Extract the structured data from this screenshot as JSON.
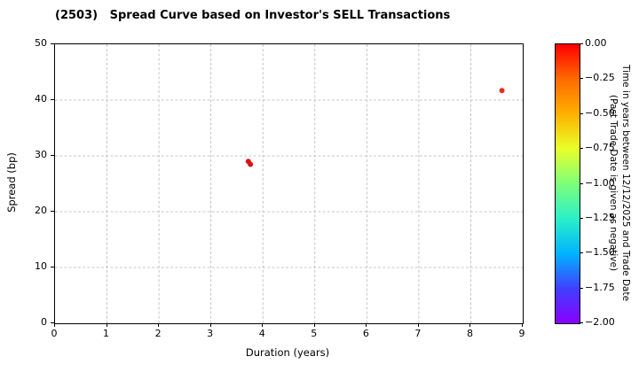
{
  "chart_data": {
    "type": "scatter",
    "title": "(2503)   Spread Curve based on Investor's SELL Transactions",
    "xlabel": "Duration (years)",
    "ylabel": "Spread (bp)",
    "xlim": [
      0,
      9
    ],
    "ylim": [
      0,
      50
    ],
    "xticks": [
      0,
      1,
      2,
      3,
      4,
      5,
      6,
      7,
      8,
      9
    ],
    "yticks": [
      0,
      10,
      20,
      30,
      40,
      50
    ],
    "grid": true,
    "points": [
      {
        "x": 3.72,
        "y": 29.0,
        "color": "#e01313"
      },
      {
        "x": 3.76,
        "y": 28.5,
        "color": "#e01313"
      },
      {
        "x": 8.6,
        "y": 41.7,
        "color": "#ee2a1a"
      }
    ],
    "colorbar": {
      "ticks": [
        "0.00",
        "−0.25",
        "−0.50",
        "−0.75",
        "−1.00",
        "−1.25",
        "−1.50",
        "−1.75",
        "−2.00"
      ],
      "tick_values": [
        0,
        -0.25,
        -0.5,
        -0.75,
        -1.0,
        -1.25,
        -1.5,
        -1.75,
        -2.0
      ],
      "colors": [
        "#ff0000",
        "#ff6a00",
        "#ffb000",
        "#e8ff2a",
        "#7dff7a",
        "#2af0c8",
        "#00b4ff",
        "#4040ff",
        "#8a00ff"
      ],
      "label_line1": "Time in years between 12/12/2025 and Trade Date",
      "label_line2": "(Past Trade Date is given as negative)"
    }
  }
}
